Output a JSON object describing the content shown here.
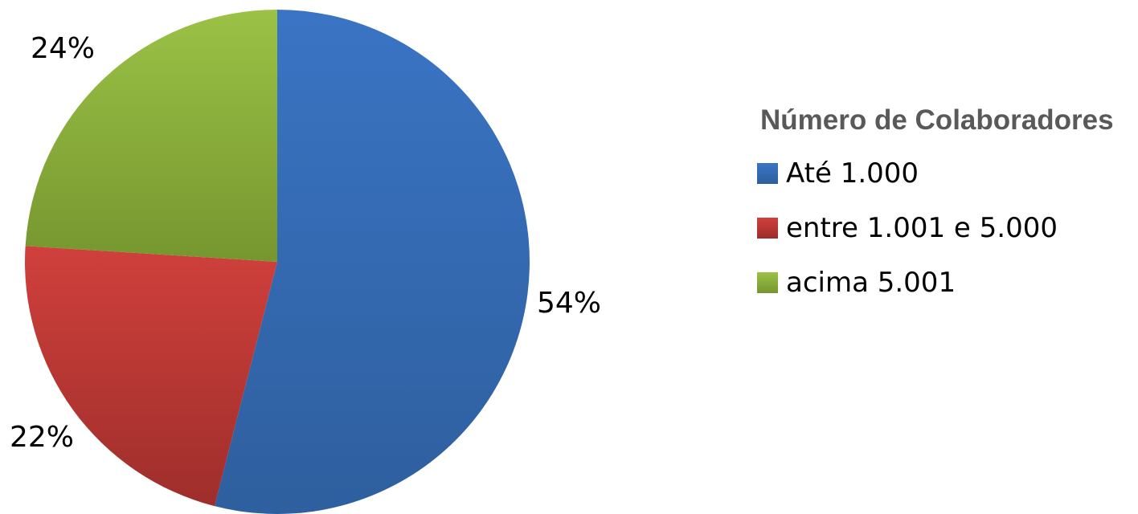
{
  "chart_data": {
    "type": "pie",
    "title": "",
    "legend_title": "Número de Colaboradores",
    "legend_position": "right",
    "start_angle_deg": 0,
    "direction": "clockwise",
    "slices": [
      {
        "label": "Até 1.000",
        "value": 54,
        "display": "54%",
        "color": "#3a74c4",
        "color_dark": "#2e5f9e"
      },
      {
        "label": "entre 1.001 e 5.000",
        "value": 22,
        "display": "22%",
        "color": "#d0403c",
        "color_dark": "#9e2e2b"
      },
      {
        "label": "acima 5.001",
        "value": 24,
        "display": "24%",
        "color": "#9bc246",
        "color_dark": "#76962f"
      }
    ]
  }
}
